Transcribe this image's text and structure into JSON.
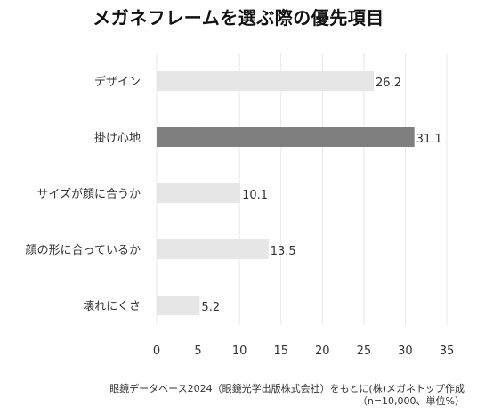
{
  "chart_data": {
    "type": "bar",
    "orientation": "horizontal",
    "title": "メガネフレームを選ぶ際の優先項目",
    "categories": [
      "デザイン",
      "掛け心地",
      "サイズが顔に合うか",
      "顔の形に合っているか",
      "壊れにくさ"
    ],
    "values": [
      26.2,
      31.1,
      10.1,
      13.5,
      5.2
    ],
    "value_labels": [
      "26.2",
      "31.1",
      "10.1",
      "13.5",
      "5.2"
    ],
    "highlight_index": 1,
    "xlim": [
      0,
      35
    ],
    "xticks": [
      0,
      5,
      10,
      15,
      20,
      25,
      30,
      35
    ],
    "grid": true,
    "colors": {
      "bar": "#e6e6e6",
      "highlight": "#7f7f7f",
      "grid": "#e8e8e8"
    }
  },
  "source": {
    "line1": "眼鏡データベース2024（眼鏡光学出版株式会社）をもとに(株)メガネトップ作成",
    "line2": "（n=10,000、単位%）"
  }
}
